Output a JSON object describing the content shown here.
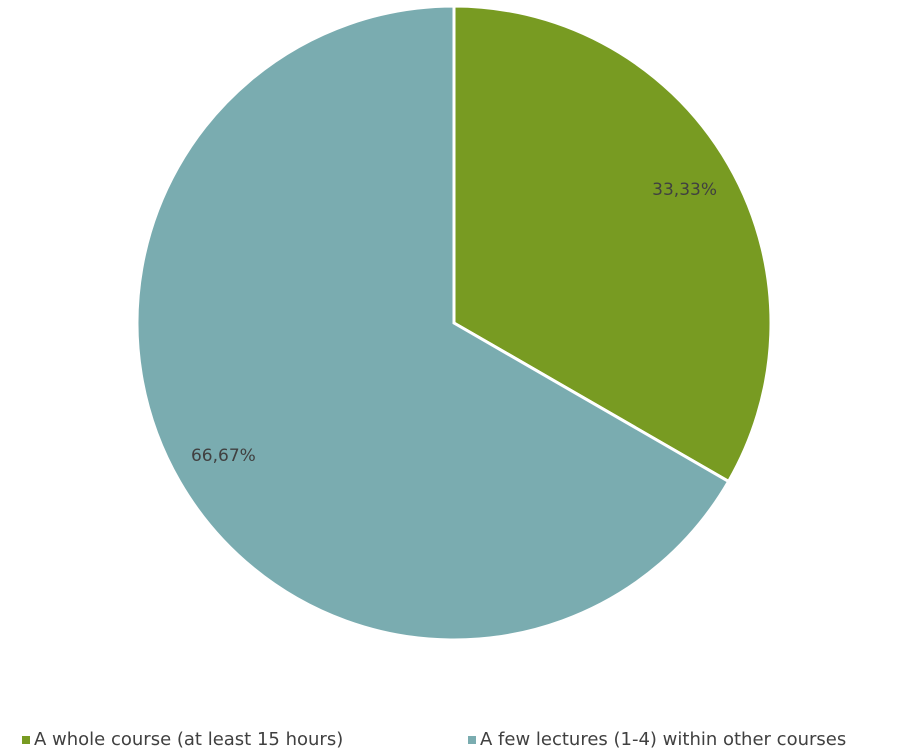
{
  "chart_data": {
    "type": "pie",
    "categories": [
      "A whole course (at least 15 hours)",
      "A few lectures (1-4) within other courses"
    ],
    "values": [
      33.33,
      66.67
    ],
    "value_labels": [
      "33,33%",
      "66,67%"
    ],
    "colors": [
      "#789b22",
      "#7aacb0"
    ],
    "legend": "bottom"
  }
}
